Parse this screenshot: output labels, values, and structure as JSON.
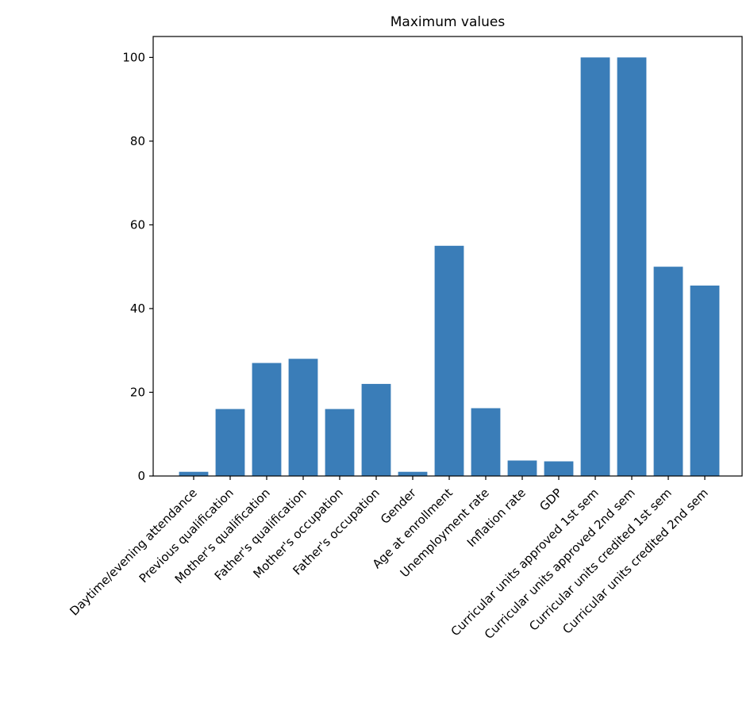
{
  "chart_data": {
    "type": "bar",
    "title": "Maximum values",
    "xlabel": "",
    "ylabel": "",
    "categories": [
      "Daytime/evening attendance",
      "Previous qualification",
      "Mother's qualification",
      "Father's qualification",
      "Mother's occupation",
      "Father's occupation",
      "Gender",
      "Age at enrollment",
      "Unemployment rate",
      "Inflation rate",
      "GDP",
      "Curricular units approved 1st sem",
      "Curricular units approved 2nd sem",
      "Curricular units credited 1st sem",
      "Curricular units credited 2nd sem"
    ],
    "values": [
      1,
      16,
      27,
      28,
      16,
      22,
      1,
      55,
      16.2,
      3.7,
      3.5,
      100,
      100,
      50,
      45.5
    ],
    "ylim": [
      0,
      105
    ],
    "yticks": [
      0,
      20,
      40,
      60,
      80,
      100
    ],
    "grid": false,
    "colors": {
      "bar": "#3a7db8"
    }
  }
}
